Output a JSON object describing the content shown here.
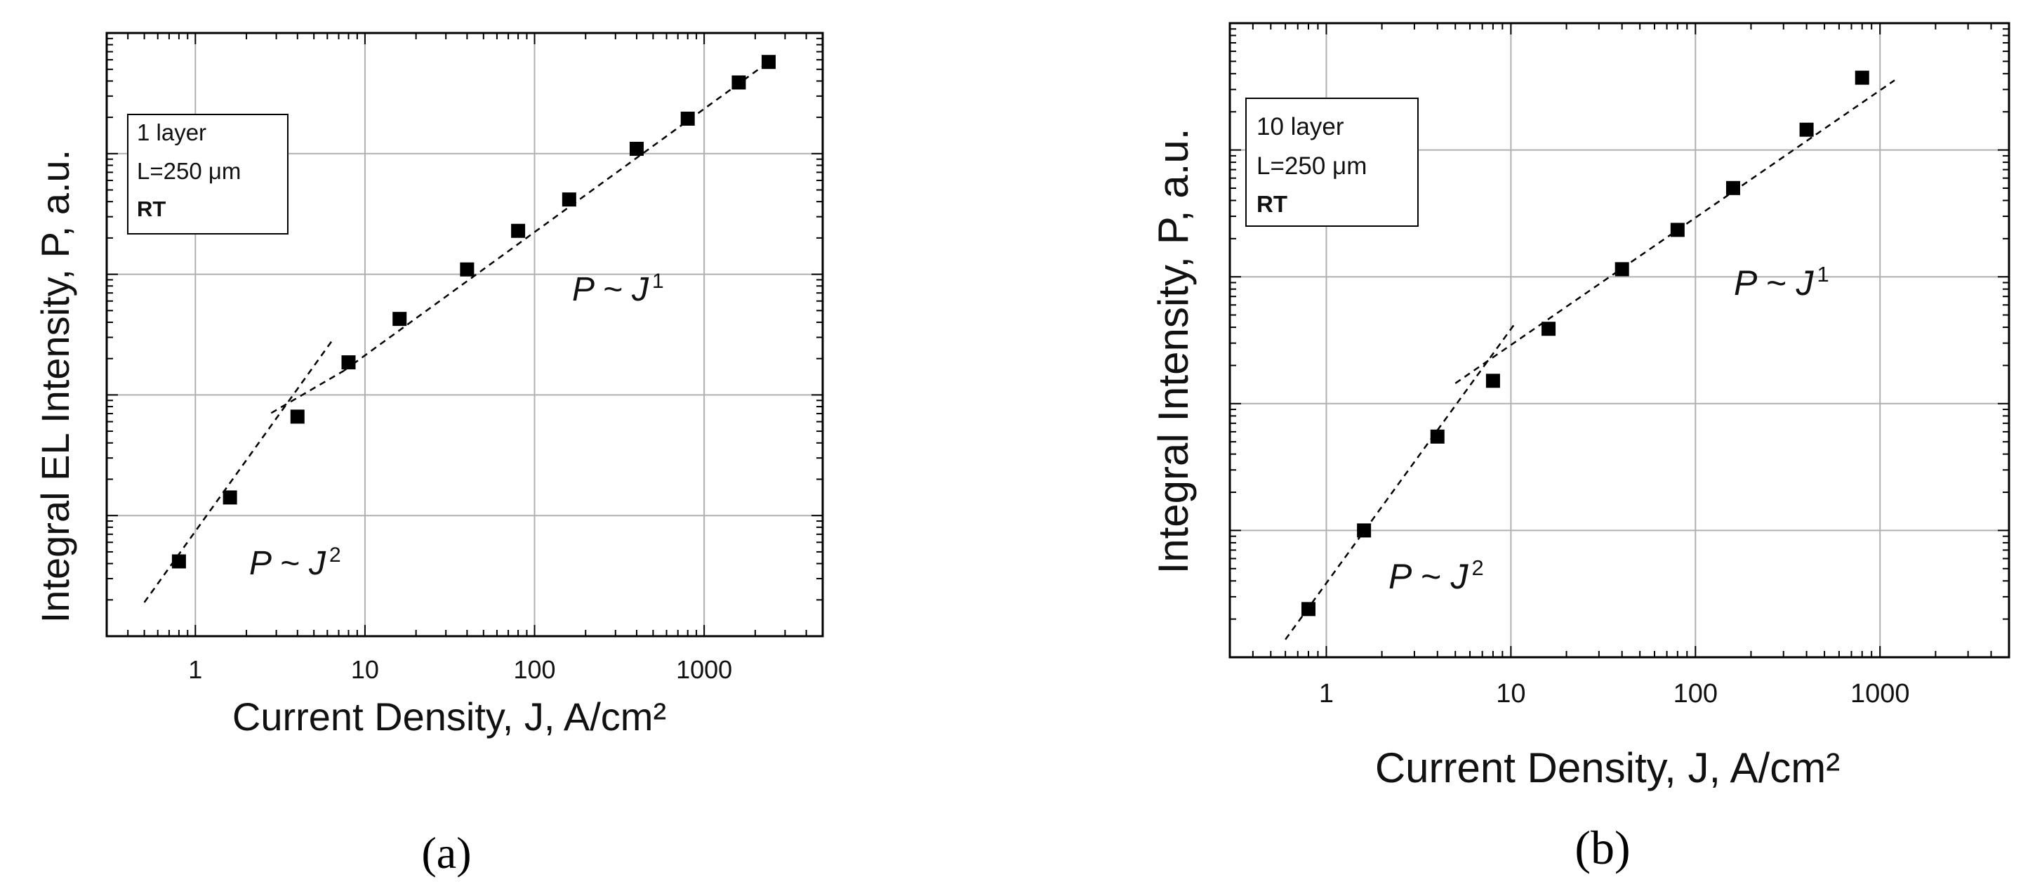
{
  "chart_data": [
    {
      "type": "scatter",
      "panel_label": "(a)",
      "xlabel": "Current Density, J, A/cm²",
      "ylabel": "Integral EL Intensity, P, a.u.",
      "x_scale": "log",
      "y_scale": "log",
      "xlim": [
        0.3,
        5000
      ],
      "ylim_decades": [
        0,
        5
      ],
      "x_ticks": [
        {
          "value": 1,
          "label": "1"
        },
        {
          "value": 10,
          "label": "10"
        },
        {
          "value": 100,
          "label": "100"
        },
        {
          "value": 1000,
          "label": "1000"
        }
      ],
      "y_tick_labels": "none",
      "grid": true,
      "inset_box": {
        "lines": [
          "1 layer",
          "L=250 μm",
          "RT"
        ],
        "placement": "top-left"
      },
      "annotations": [
        {
          "text": "P ~ J",
          "sup": "1"
        },
        {
          "text": "P ~ J",
          "sup": "2"
        }
      ],
      "series": [
        {
          "marker": "square",
          "color": "#000000",
          "x": [
            0.8,
            1.6,
            4,
            8,
            16,
            40,
            80,
            160,
            400,
            800,
            1600,
            2400
          ],
          "y_decades": [
            0.62,
            1.15,
            1.82,
            2.27,
            2.63,
            3.04,
            3.36,
            3.62,
            4.04,
            4.29,
            4.59,
            4.76
          ]
        }
      ],
      "fits": [
        {
          "label": "P ~ J^2",
          "style": "dashed",
          "x": [
            0.5,
            6.4
          ],
          "y_decades": [
            0.28,
            2.45
          ]
        },
        {
          "label": "P ~ J^2",
          "style": "dashed",
          "x": [
            2.8,
            7.5
          ],
          "y_decades": [
            1.85,
            2.2
          ]
        },
        {
          "label": "P ~ J^1",
          "style": "dashed",
          "x": [
            7.5,
            2400
          ],
          "y_decades": [
            2.2,
            4.76
          ]
        }
      ]
    },
    {
      "type": "scatter",
      "panel_label": "(b)",
      "xlabel": "Current Density, J, A/cm²",
      "ylabel": "Integral Intensity, P, a.u.",
      "x_scale": "log",
      "y_scale": "log",
      "xlim": [
        0.3,
        5000
      ],
      "ylim_decades": [
        0,
        5
      ],
      "x_ticks": [
        {
          "value": 1,
          "label": "1"
        },
        {
          "value": 10,
          "label": "10"
        },
        {
          "value": 100,
          "label": "100"
        },
        {
          "value": 1000,
          "label": "1000"
        }
      ],
      "y_tick_labels": "none",
      "grid": true,
      "inset_box": {
        "lines": [
          "10 layer",
          "L=250 μm",
          "RT"
        ],
        "placement": "top-left"
      },
      "annotations": [
        {
          "text": "P ~ J",
          "sup": "1"
        },
        {
          "text": "P ~ J",
          "sup": "2"
        }
      ],
      "series": [
        {
          "marker": "square",
          "color": "#000000",
          "x": [
            0.8,
            1.6,
            4,
            8,
            16,
            40,
            80,
            160,
            400,
            800
          ],
          "y_decades": [
            0.38,
            1.0,
            1.74,
            2.18,
            2.59,
            3.06,
            3.37,
            3.7,
            4.16,
            4.57
          ]
        }
      ],
      "fits": [
        {
          "label": "P ~ J^2",
          "style": "dashed",
          "x": [
            0.6,
            10.5
          ],
          "y_decades": [
            0.14,
            2.63
          ]
        },
        {
          "label": "P ~ J^1",
          "style": "dashed",
          "x": [
            5,
            1200
          ],
          "y_decades": [
            2.16,
            4.55
          ]
        }
      ]
    }
  ]
}
